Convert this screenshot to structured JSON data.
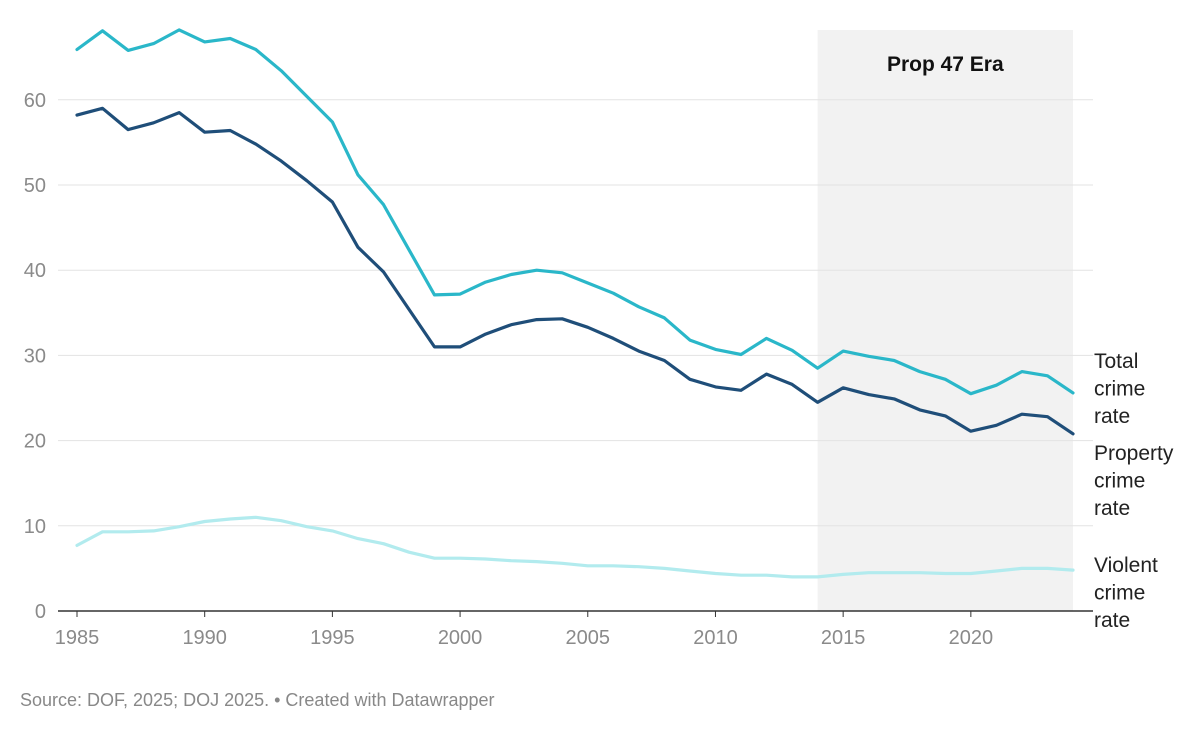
{
  "chart_data": {
    "type": "line",
    "title": "",
    "xlabel": "",
    "ylabel": "",
    "xlim": [
      1985,
      2024
    ],
    "ylim": [
      0,
      68
    ],
    "x_ticks": [
      1985,
      1990,
      1995,
      2000,
      2005,
      2010,
      2015,
      2020
    ],
    "y_ticks": [
      0,
      10,
      20,
      30,
      40,
      50,
      60
    ],
    "grid": "horizontal",
    "x": [
      1985,
      1986,
      1987,
      1988,
      1989,
      1990,
      1991,
      1992,
      1993,
      1994,
      1995,
      1996,
      1997,
      1998,
      1999,
      2000,
      2001,
      2002,
      2003,
      2004,
      2005,
      2006,
      2007,
      2008,
      2009,
      2010,
      2011,
      2012,
      2013,
      2014,
      2015,
      2016,
      2017,
      2018,
      2019,
      2020,
      2021,
      2022,
      2023,
      2024
    ],
    "series": [
      {
        "name": "Total crime rate",
        "label_lines": [
          "Total",
          "crime",
          "rate"
        ],
        "color": "#2ab7c9",
        "values": [
          65.9,
          68.1,
          65.8,
          66.6,
          68.2,
          66.8,
          67.2,
          65.9,
          63.4,
          60.4,
          57.4,
          51.2,
          47.7,
          42.4,
          37.1,
          37.2,
          38.6,
          39.5,
          40.0,
          39.7,
          38.5,
          37.3,
          35.7,
          34.4,
          31.8,
          30.7,
          30.1,
          32.0,
          30.6,
          28.5,
          30.5,
          29.9,
          29.4,
          28.1,
          27.2,
          25.5,
          26.5,
          28.1,
          27.6,
          25.6
        ]
      },
      {
        "name": "Property crime rate",
        "label_lines": [
          "Property",
          "crime",
          "rate"
        ],
        "color": "#1f4e79",
        "values": [
          58.2,
          59.0,
          56.5,
          57.3,
          58.5,
          56.2,
          56.4,
          54.8,
          52.8,
          50.5,
          48.0,
          42.7,
          39.8,
          35.4,
          31.0,
          31.0,
          32.5,
          33.6,
          34.2,
          34.3,
          33.3,
          32.0,
          30.5,
          29.4,
          27.2,
          26.3,
          25.9,
          27.8,
          26.6,
          24.5,
          26.2,
          25.4,
          24.9,
          23.6,
          22.9,
          21.1,
          21.8,
          23.1,
          22.8,
          20.8
        ]
      },
      {
        "name": "Violent crime rate",
        "label_lines": [
          "Violent",
          "crime",
          "rate"
        ],
        "color": "#b2ebee",
        "values": [
          7.7,
          9.3,
          9.3,
          9.4,
          9.9,
          10.5,
          10.8,
          11.0,
          10.6,
          9.9,
          9.4,
          8.5,
          7.9,
          6.9,
          6.2,
          6.2,
          6.1,
          5.9,
          5.8,
          5.6,
          5.3,
          5.3,
          5.2,
          5.0,
          4.7,
          4.4,
          4.2,
          4.2,
          4.0,
          4.0,
          4.3,
          4.5,
          4.5,
          4.5,
          4.4,
          4.4,
          4.7,
          5.0,
          5.0,
          4.8
        ]
      }
    ],
    "annotations": [
      {
        "text": "Prop 47 Era",
        "x_start": 2014,
        "x_end": 2024
      }
    ]
  },
  "footer": {
    "source": "Source: DOF, 2025; DOJ 2025. • Created with Datawrapper"
  }
}
